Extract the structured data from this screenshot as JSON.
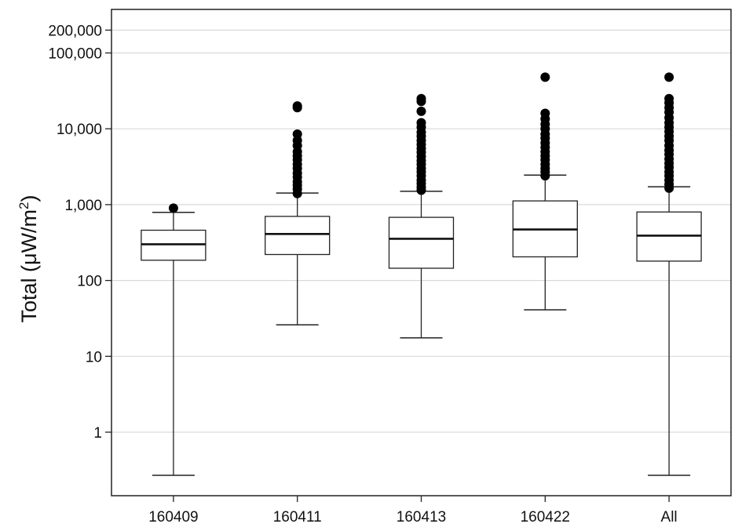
{
  "chart_data": {
    "type": "box",
    "ylabel": "Total (μW/m²)",
    "ylabel_parts": {
      "prefix": "Total (μW/m",
      "superscript": "2",
      "suffix": ")"
    },
    "yscale": "log",
    "ylim": [
      0.13,
      300000
    ],
    "yticks": [
      1,
      10,
      100,
      1000,
      10000,
      100000,
      200000
    ],
    "ytick_labels": [
      "1",
      "10",
      "100",
      "1,000",
      "10,000",
      "100,000",
      "200,000"
    ],
    "grid": true,
    "categories": [
      "160409",
      "160411",
      "160413",
      "160422",
      "All"
    ],
    "boxes": [
      {
        "category": "160409",
        "whisker_low": 0.27,
        "q1": 185,
        "median": 300,
        "q3": 460,
        "whisker_high": 790,
        "outliers": [
          900
        ]
      },
      {
        "category": "160411",
        "whisker_low": 26,
        "q1": 220,
        "median": 410,
        "q3": 700,
        "whisker_high": 1420,
        "outliers": [
          1400,
          1600,
          1800,
          2000,
          2300,
          2600,
          3000,
          3400,
          3900,
          4400,
          5000,
          6000,
          7000,
          8500,
          19000,
          20000
        ]
      },
      {
        "category": "160413",
        "whisker_low": 17.5,
        "q1": 145,
        "median": 355,
        "q3": 680,
        "whisker_high": 1500,
        "outliers": [
          1550,
          1700,
          1900,
          2100,
          2400,
          2700,
          3000,
          3400,
          3800,
          4300,
          4900,
          5500,
          6200,
          7000,
          8000,
          9000,
          10500,
          12000,
          17000,
          23000,
          25000
        ]
      },
      {
        "category": "160422",
        "whisker_low": 41,
        "q1": 205,
        "median": 470,
        "q3": 1120,
        "whisker_high": 2450,
        "outliers": [
          2400,
          2700,
          3000,
          3400,
          3900,
          4400,
          5000,
          5700,
          6500,
          7500,
          8500,
          10000,
          11500,
          13500,
          16000,
          48000
        ]
      },
      {
        "category": "All",
        "whisker_low": 0.27,
        "q1": 180,
        "median": 390,
        "q3": 800,
        "whisker_high": 1720,
        "outliers": [
          1650,
          1850,
          2100,
          2400,
          2700,
          3100,
          3500,
          4000,
          4600,
          5200,
          6000,
          7000,
          8000,
          9200,
          10500,
          12000,
          14000,
          16500,
          19000,
          22000,
          25000,
          48000
        ]
      }
    ]
  }
}
